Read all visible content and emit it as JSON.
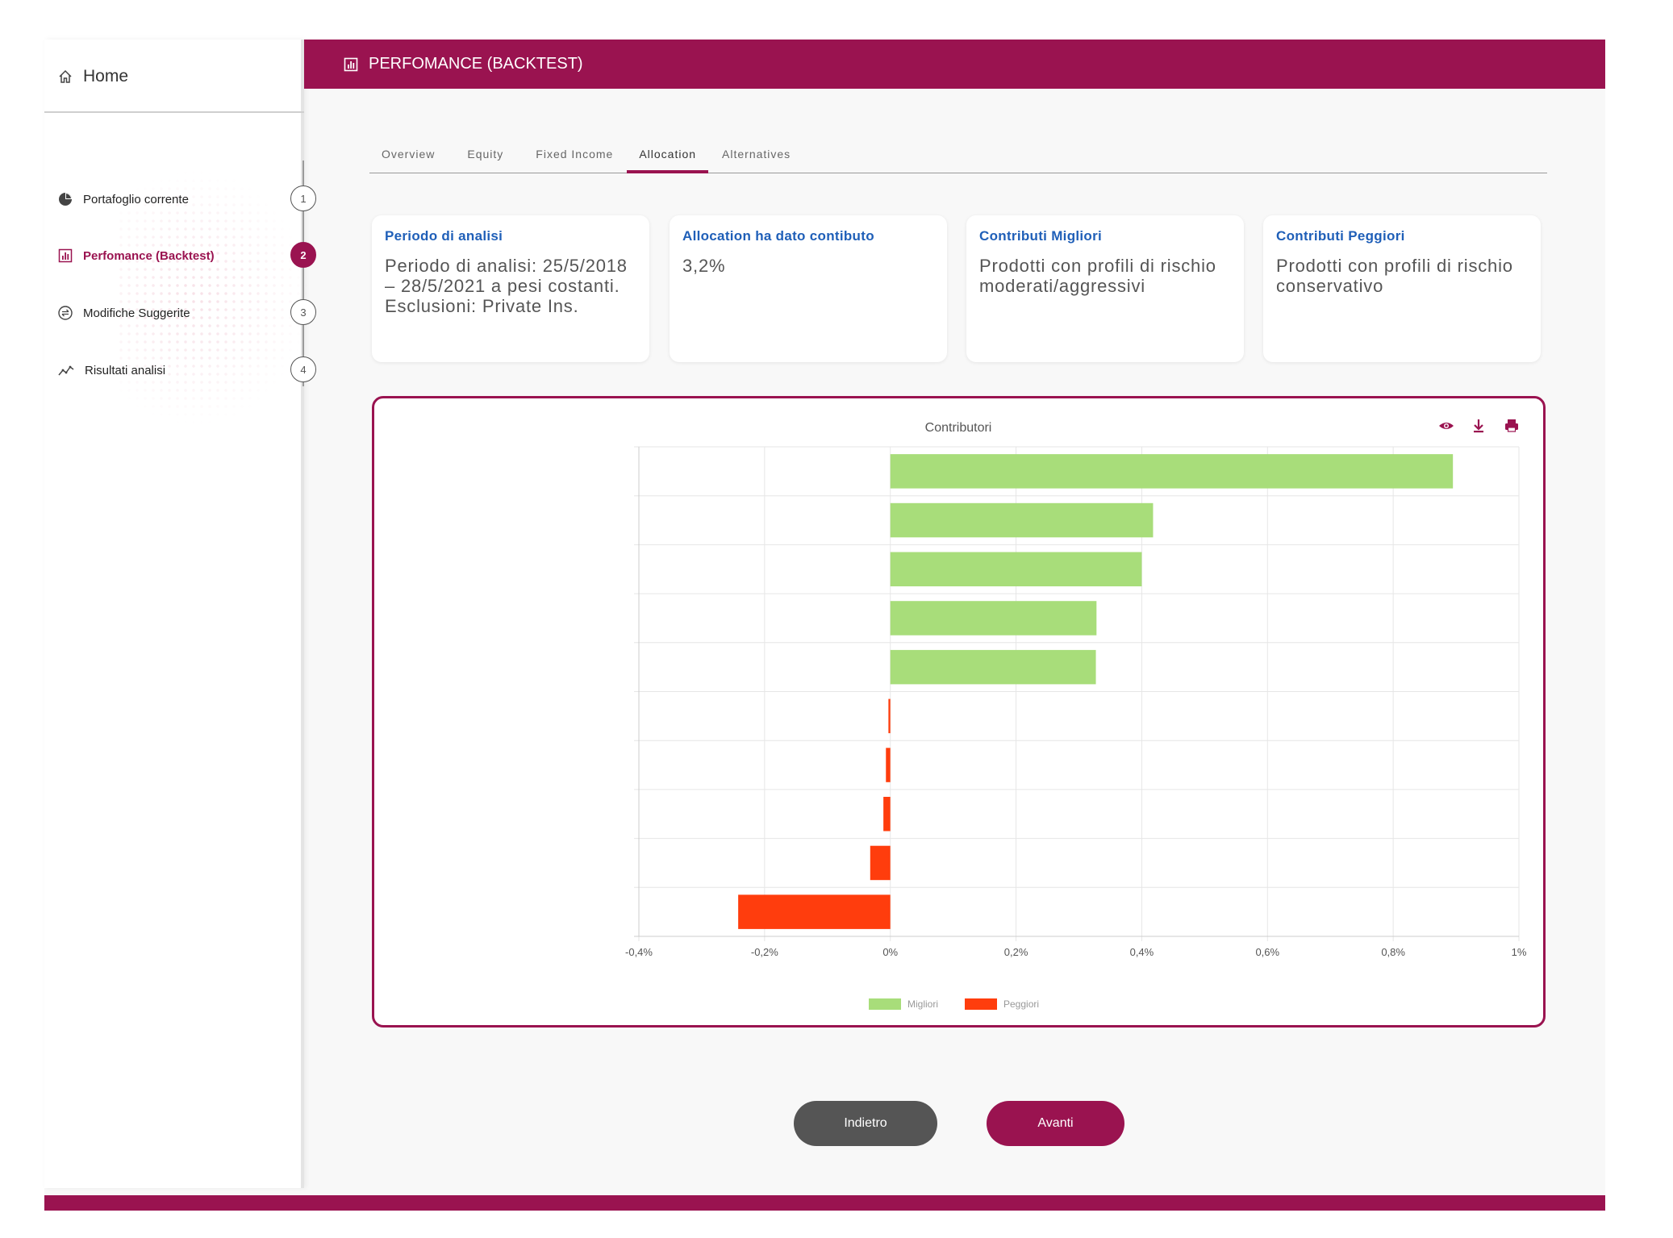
{
  "sidebar": {
    "home_label": "Home",
    "items": [
      {
        "label": "Portafoglio corrente",
        "step": "1",
        "icon": "pie-chart-icon"
      },
      {
        "label": "Perfomance (Backtest)",
        "step": "2",
        "icon": "bar-chart-icon"
      },
      {
        "label": "Modifiche Suggerite",
        "step": "3",
        "icon": "swap-icon"
      },
      {
        "label": "Risultati analisi",
        "step": "4",
        "icon": "trend-line-icon"
      }
    ],
    "active_index": 1
  },
  "header": {
    "title": "PERFOMANCE (BACKTEST)"
  },
  "tabs": {
    "items": [
      "Overview",
      "Equity",
      "Fixed Income",
      "Allocation",
      "Alternatives"
    ],
    "active": "Allocation"
  },
  "cards": [
    {
      "title": "Periodo di analisi",
      "text": "Periodo di analisi: 25/5/2018 – 28/5/2021 a pesi costanti. Esclusioni: Private Ins."
    },
    {
      "title": "Allocation ha dato contibuto",
      "text": "3,2%"
    },
    {
      "title": "Contributi Migliori",
      "text": "Prodotti con profili di rischio moderati/aggressivi"
    },
    {
      "title": "Contributi Peggiori",
      "text": "Prodotti con profili di rischio conservativo"
    }
  ],
  "chart_data": {
    "type": "bar",
    "orientation": "horizontal",
    "title": "Contributori",
    "xlim": [
      -0.4,
      1.0
    ],
    "x_ticks": [
      "-0,4%",
      "-0,2%",
      "0%",
      "0,2%",
      "0,4%",
      "0,6%",
      "0,8%",
      "1%"
    ],
    "x_tick_values": [
      -0.4,
      -0.2,
      0,
      0.2,
      0.4,
      0.6,
      0.8,
      1.0
    ],
    "grid": true,
    "legend_position": "bottom",
    "series": [
      {
        "name": "Migliori",
        "color": "#a8dd7a",
        "values": [
          0.895,
          0.418,
          0.4,
          0.328,
          0.327,
          null,
          null,
          null,
          null,
          null
        ]
      },
      {
        "name": "Peggiori",
        "color": "#ff3d0d",
        "values": [
          null,
          null,
          null,
          null,
          null,
          -0.003,
          -0.007,
          -0.011,
          -0.032,
          -0.242
        ]
      }
    ],
    "controls": [
      "eye-icon",
      "download-icon",
      "print-icon"
    ]
  },
  "buttons": {
    "back": "Indietro",
    "next": "Avanti"
  },
  "colors": {
    "brand": "#9a1350",
    "link": "#1f5fb8",
    "back_button": "#555555"
  }
}
